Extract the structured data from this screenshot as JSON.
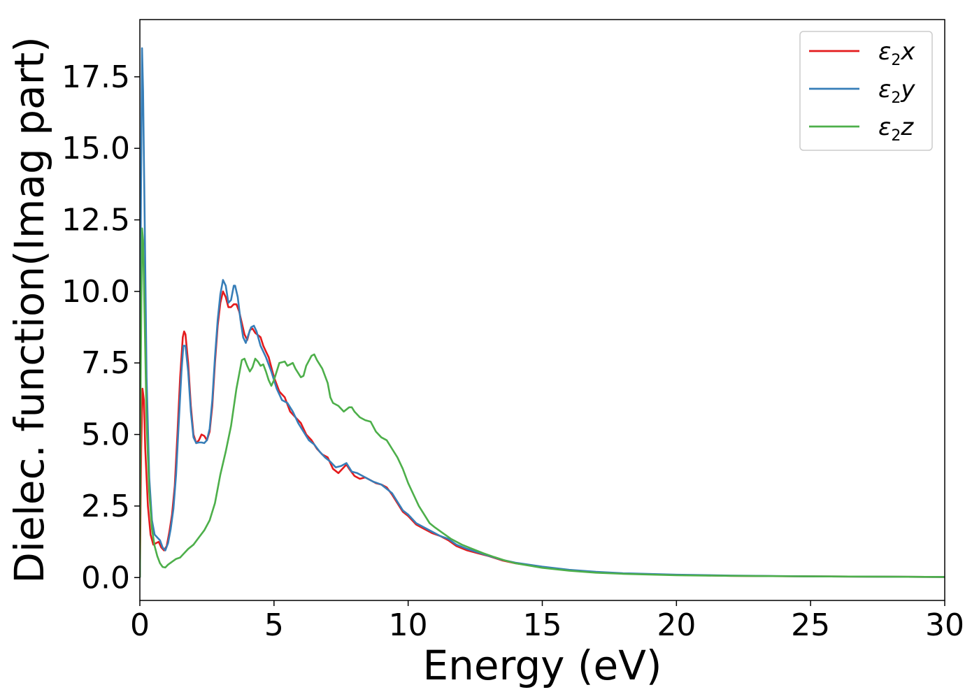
{
  "chart_data": {
    "type": "line",
    "title": "",
    "xlabel": "Energy (eV)",
    "ylabel": "Dielec. function(Imag part)",
    "xlim": [
      0,
      30
    ],
    "ylim": [
      -0.8,
      19.5
    ],
    "xticks": [
      0,
      5,
      10,
      15,
      20,
      25,
      30
    ],
    "xtick_labels": [
      "0",
      "5",
      "10",
      "15",
      "20",
      "25",
      "30"
    ],
    "yticks": [
      0.0,
      2.5,
      5.0,
      7.5,
      10.0,
      12.5,
      15.0,
      17.5
    ],
    "ytick_labels": [
      "0.0",
      "2.5",
      "5.0",
      "7.5",
      "10.0",
      "12.5",
      "15.0",
      "17.5"
    ],
    "grid": false,
    "legend_position": "top-right",
    "series": [
      {
        "name": "ε2x",
        "base": "ε",
        "sub": "2",
        "var": "x",
        "color": "#e41a1c",
        "points": [
          [
            0,
            0
          ],
          [
            0.05,
            4.5
          ],
          [
            0.1,
            6.6
          ],
          [
            0.15,
            6.2
          ],
          [
            0.2,
            4.5
          ],
          [
            0.3,
            2.5
          ],
          [
            0.4,
            1.5
          ],
          [
            0.5,
            1.15
          ],
          [
            0.6,
            1.2
          ],
          [
            0.7,
            1.25
          ],
          [
            0.8,
            1.05
          ],
          [
            0.9,
            0.95
          ],
          [
            1.0,
            1.1
          ],
          [
            1.1,
            1.6
          ],
          [
            1.2,
            2.2
          ],
          [
            1.3,
            3.2
          ],
          [
            1.4,
            5.0
          ],
          [
            1.5,
            7.0
          ],
          [
            1.6,
            8.4
          ],
          [
            1.65,
            8.6
          ],
          [
            1.7,
            8.5
          ],
          [
            1.8,
            7.5
          ],
          [
            1.9,
            6.0
          ],
          [
            2.0,
            5.0
          ],
          [
            2.1,
            4.7
          ],
          [
            2.2,
            4.8
          ],
          [
            2.3,
            5.0
          ],
          [
            2.4,
            4.95
          ],
          [
            2.5,
            4.8
          ],
          [
            2.6,
            5.1
          ],
          [
            2.7,
            6.0
          ],
          [
            2.8,
            7.5
          ],
          [
            2.9,
            8.8
          ],
          [
            3.0,
            9.6
          ],
          [
            3.1,
            10.0
          ],
          [
            3.2,
            9.8
          ],
          [
            3.3,
            9.45
          ],
          [
            3.4,
            9.45
          ],
          [
            3.5,
            9.55
          ],
          [
            3.6,
            9.55
          ],
          [
            3.7,
            9.3
          ],
          [
            3.8,
            8.9
          ],
          [
            3.9,
            8.5
          ],
          [
            4.0,
            8.3
          ],
          [
            4.1,
            8.65
          ],
          [
            4.2,
            8.7
          ],
          [
            4.3,
            8.55
          ],
          [
            4.5,
            8.4
          ],
          [
            4.6,
            8.1
          ],
          [
            4.7,
            7.9
          ],
          [
            4.8,
            7.7
          ],
          [
            5.0,
            7.0
          ],
          [
            5.2,
            6.5
          ],
          [
            5.4,
            6.3
          ],
          [
            5.6,
            5.8
          ],
          [
            5.8,
            5.6
          ],
          [
            6.0,
            5.4
          ],
          [
            6.2,
            5.0
          ],
          [
            6.4,
            4.8
          ],
          [
            6.6,
            4.5
          ],
          [
            6.8,
            4.3
          ],
          [
            7.0,
            4.2
          ],
          [
            7.2,
            3.8
          ],
          [
            7.4,
            3.65
          ],
          [
            7.6,
            3.85
          ],
          [
            7.7,
            3.95
          ],
          [
            7.8,
            3.8
          ],
          [
            8.0,
            3.55
          ],
          [
            8.2,
            3.45
          ],
          [
            8.4,
            3.5
          ],
          [
            8.6,
            3.4
          ],
          [
            8.8,
            3.3
          ],
          [
            9.0,
            3.25
          ],
          [
            9.2,
            3.15
          ],
          [
            9.4,
            2.9
          ],
          [
            9.6,
            2.6
          ],
          [
            9.8,
            2.3
          ],
          [
            10.0,
            2.15
          ],
          [
            10.3,
            1.85
          ],
          [
            10.6,
            1.7
          ],
          [
            10.9,
            1.55
          ],
          [
            11.2,
            1.45
          ],
          [
            11.5,
            1.3
          ],
          [
            11.8,
            1.1
          ],
          [
            12.2,
            0.95
          ],
          [
            12.6,
            0.85
          ],
          [
            13.0,
            0.75
          ],
          [
            13.5,
            0.6
          ],
          [
            14.0,
            0.5
          ],
          [
            15.0,
            0.37
          ],
          [
            16.0,
            0.26
          ],
          [
            17.0,
            0.19
          ],
          [
            18.0,
            0.14
          ],
          [
            20.0,
            0.09
          ],
          [
            22.0,
            0.06
          ],
          [
            25.0,
            0.04
          ],
          [
            30.0,
            0.02
          ]
        ]
      },
      {
        "name": "ε2y",
        "base": "ε",
        "sub": "2",
        "var": "y",
        "color": "#377eb8",
        "points": [
          [
            0,
            0
          ],
          [
            0.03,
            12.0
          ],
          [
            0.08,
            18.5
          ],
          [
            0.12,
            17.0
          ],
          [
            0.18,
            12.5
          ],
          [
            0.25,
            7.0
          ],
          [
            0.35,
            3.5
          ],
          [
            0.45,
            2.0
          ],
          [
            0.55,
            1.5
          ],
          [
            0.65,
            1.4
          ],
          [
            0.75,
            1.3
          ],
          [
            0.85,
            1.05
          ],
          [
            0.95,
            0.95
          ],
          [
            1.05,
            1.2
          ],
          [
            1.15,
            1.7
          ],
          [
            1.25,
            2.4
          ],
          [
            1.35,
            3.6
          ],
          [
            1.45,
            5.4
          ],
          [
            1.55,
            7.2
          ],
          [
            1.62,
            8.1
          ],
          [
            1.7,
            8.1
          ],
          [
            1.8,
            7.2
          ],
          [
            1.9,
            5.8
          ],
          [
            2.0,
            4.9
          ],
          [
            2.1,
            4.7
          ],
          [
            2.2,
            4.72
          ],
          [
            2.3,
            4.72
          ],
          [
            2.4,
            4.7
          ],
          [
            2.5,
            4.8
          ],
          [
            2.6,
            5.2
          ],
          [
            2.7,
            6.2
          ],
          [
            2.8,
            7.7
          ],
          [
            2.9,
            9.0
          ],
          [
            3.0,
            9.9
          ],
          [
            3.1,
            10.4
          ],
          [
            3.2,
            10.2
          ],
          [
            3.3,
            9.6
          ],
          [
            3.4,
            9.7
          ],
          [
            3.5,
            10.2
          ],
          [
            3.55,
            10.2
          ],
          [
            3.65,
            9.8
          ],
          [
            3.75,
            9.0
          ],
          [
            3.85,
            8.4
          ],
          [
            3.95,
            8.2
          ],
          [
            4.05,
            8.5
          ],
          [
            4.15,
            8.75
          ],
          [
            4.25,
            8.8
          ],
          [
            4.35,
            8.6
          ],
          [
            4.5,
            8.1
          ],
          [
            4.7,
            7.7
          ],
          [
            4.9,
            7.2
          ],
          [
            5.1,
            6.6
          ],
          [
            5.3,
            6.2
          ],
          [
            5.5,
            6.1
          ],
          [
            5.7,
            5.8
          ],
          [
            5.9,
            5.4
          ],
          [
            6.1,
            5.1
          ],
          [
            6.3,
            4.8
          ],
          [
            6.5,
            4.65
          ],
          [
            6.7,
            4.4
          ],
          [
            6.9,
            4.2
          ],
          [
            7.1,
            4.05
          ],
          [
            7.3,
            3.85
          ],
          [
            7.5,
            3.9
          ],
          [
            7.7,
            4.0
          ],
          [
            7.9,
            3.7
          ],
          [
            8.1,
            3.65
          ],
          [
            8.3,
            3.55
          ],
          [
            8.5,
            3.45
          ],
          [
            8.7,
            3.35
          ],
          [
            9.0,
            3.25
          ],
          [
            9.2,
            3.1
          ],
          [
            9.4,
            2.95
          ],
          [
            9.6,
            2.65
          ],
          [
            9.8,
            2.35
          ],
          [
            10.0,
            2.2
          ],
          [
            10.3,
            1.9
          ],
          [
            10.6,
            1.75
          ],
          [
            10.9,
            1.6
          ],
          [
            11.2,
            1.45
          ],
          [
            11.5,
            1.35
          ],
          [
            11.8,
            1.15
          ],
          [
            12.2,
            1.0
          ],
          [
            12.6,
            0.88
          ],
          [
            13.0,
            0.76
          ],
          [
            13.5,
            0.62
          ],
          [
            14.0,
            0.52
          ],
          [
            15.0,
            0.38
          ],
          [
            16.0,
            0.27
          ],
          [
            17.0,
            0.2
          ],
          [
            18.0,
            0.15
          ],
          [
            20.0,
            0.1
          ],
          [
            22.0,
            0.07
          ],
          [
            25.0,
            0.04
          ],
          [
            30.0,
            0.02
          ]
        ]
      },
      {
        "name": "ε2z",
        "base": "ε",
        "sub": "2",
        "var": "z",
        "color": "#4daf4a",
        "points": [
          [
            0,
            0
          ],
          [
            0.03,
            7.0
          ],
          [
            0.08,
            12.2
          ],
          [
            0.12,
            11.8
          ],
          [
            0.18,
            9.0
          ],
          [
            0.25,
            5.5
          ],
          [
            0.35,
            3.0
          ],
          [
            0.45,
            1.7
          ],
          [
            0.55,
            1.1
          ],
          [
            0.65,
            0.75
          ],
          [
            0.75,
            0.5
          ],
          [
            0.85,
            0.37
          ],
          [
            0.95,
            0.35
          ],
          [
            1.05,
            0.45
          ],
          [
            1.2,
            0.55
          ],
          [
            1.35,
            0.65
          ],
          [
            1.5,
            0.7
          ],
          [
            1.65,
            0.85
          ],
          [
            1.8,
            1.0
          ],
          [
            2.0,
            1.15
          ],
          [
            2.2,
            1.4
          ],
          [
            2.4,
            1.65
          ],
          [
            2.6,
            2.0
          ],
          [
            2.8,
            2.6
          ],
          [
            3.0,
            3.6
          ],
          [
            3.2,
            4.4
          ],
          [
            3.4,
            5.3
          ],
          [
            3.6,
            6.6
          ],
          [
            3.8,
            7.6
          ],
          [
            3.9,
            7.65
          ],
          [
            4.0,
            7.4
          ],
          [
            4.1,
            7.2
          ],
          [
            4.2,
            7.35
          ],
          [
            4.3,
            7.65
          ],
          [
            4.4,
            7.55
          ],
          [
            4.5,
            7.4
          ],
          [
            4.6,
            7.45
          ],
          [
            4.7,
            7.2
          ],
          [
            4.8,
            6.9
          ],
          [
            4.9,
            6.7
          ],
          [
            5.0,
            6.9
          ],
          [
            5.2,
            7.5
          ],
          [
            5.4,
            7.55
          ],
          [
            5.5,
            7.4
          ],
          [
            5.6,
            7.45
          ],
          [
            5.7,
            7.5
          ],
          [
            5.8,
            7.3
          ],
          [
            6.0,
            7.0
          ],
          [
            6.1,
            7.05
          ],
          [
            6.2,
            7.4
          ],
          [
            6.4,
            7.75
          ],
          [
            6.5,
            7.8
          ],
          [
            6.6,
            7.6
          ],
          [
            6.8,
            7.3
          ],
          [
            7.0,
            6.8
          ],
          [
            7.1,
            6.3
          ],
          [
            7.2,
            6.1
          ],
          [
            7.4,
            6.0
          ],
          [
            7.6,
            5.8
          ],
          [
            7.8,
            5.95
          ],
          [
            7.9,
            5.95
          ],
          [
            8.0,
            5.8
          ],
          [
            8.2,
            5.6
          ],
          [
            8.4,
            5.5
          ],
          [
            8.6,
            5.45
          ],
          [
            8.8,
            5.1
          ],
          [
            9.0,
            4.9
          ],
          [
            9.2,
            4.8
          ],
          [
            9.4,
            4.5
          ],
          [
            9.6,
            4.2
          ],
          [
            9.8,
            3.8
          ],
          [
            10.0,
            3.3
          ],
          [
            10.2,
            2.9
          ],
          [
            10.4,
            2.5
          ],
          [
            10.6,
            2.2
          ],
          [
            10.8,
            1.9
          ],
          [
            11.0,
            1.75
          ],
          [
            11.3,
            1.55
          ],
          [
            11.6,
            1.35
          ],
          [
            12.0,
            1.15
          ],
          [
            12.4,
            1.0
          ],
          [
            12.8,
            0.85
          ],
          [
            13.2,
            0.72
          ],
          [
            13.6,
            0.6
          ],
          [
            14.0,
            0.5
          ],
          [
            15.0,
            0.34
          ],
          [
            16.0,
            0.24
          ],
          [
            17.0,
            0.17
          ],
          [
            18.0,
            0.13
          ],
          [
            20.0,
            0.08
          ],
          [
            22.0,
            0.06
          ],
          [
            25.0,
            0.04
          ],
          [
            30.0,
            0.02
          ]
        ]
      }
    ]
  }
}
